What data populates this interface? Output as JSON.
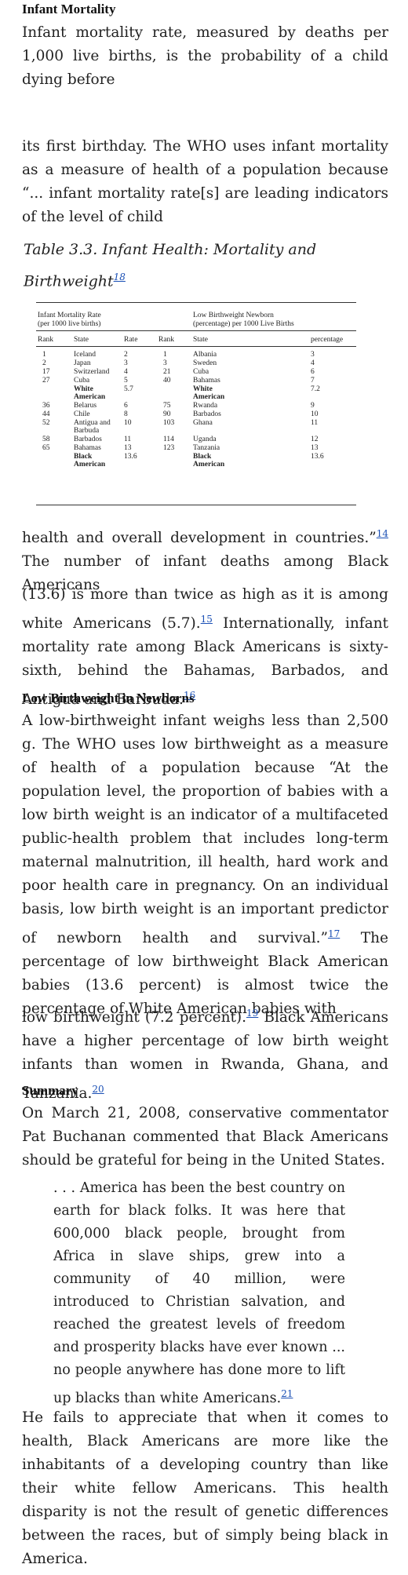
{
  "sec1": {
    "heading": "Infant Mortality",
    "p1": "Infant mortality rate, measured by deaths per 1,000 live births, is the probability of a child dying before",
    "p2": "its first birthday. The WHO uses infant mortality as a measure of health of a population because “... infant mortality rate[s] are leading indicators of the level of child",
    "p3a": "health and overall development in countries.”",
    "fn14": "14",
    "p3b": " The number of infant deaths among Black Americans",
    "p4a": "(13.6) is more than twice as high as it is among white Americans (5.7).",
    "fn15": "15",
    "p4b": " Internationally, infant mortality rate among Black Americans is sixty-sixth, behind the Bahamas, Barbados, and Antigua and Barbuda.",
    "fn16": "16"
  },
  "table": {
    "caption": "Table 3.3. Infant Health: Mortality and Birthweight",
    "caption_fn": "18",
    "group1": [
      "Infant Mortality Rate",
      "(per 1000 live births)"
    ],
    "group2": [
      "Low Birthweight Newborn",
      "(percentage) per 1000 Live Births"
    ],
    "headers": [
      "Rank",
      "State",
      "Rate",
      "Rank",
      "State",
      "percentage"
    ],
    "rows": [
      [
        "1",
        "Iceland",
        "2",
        "1",
        "Albania",
        "3"
      ],
      [
        "2",
        "Japan",
        "3",
        "3",
        "Sweden",
        "4"
      ],
      [
        "17",
        "Switzerland",
        "4",
        "21",
        "Cuba",
        "6"
      ],
      [
        "27",
        "Cuba",
        "5",
        "40",
        "Bahamas",
        "7"
      ],
      [
        "",
        "White American",
        "5.7",
        "",
        "White American",
        "7.2"
      ],
      [
        "36",
        "Belarus",
        "6",
        "75",
        "Rwanda",
        "9"
      ],
      [
        "44",
        "Chile",
        "8",
        "90",
        "Barbados",
        "10"
      ],
      [
        "52",
        "Antigua and Barbuda",
        "10",
        "103",
        "Ghana",
        "11"
      ],
      [
        "58",
        "Barbados",
        "11",
        "114",
        "Uganda",
        "12"
      ],
      [
        "65",
        "Bahamas",
        "13",
        "123",
        "Tanzania",
        "13"
      ],
      [
        "",
        "Black American",
        "13.6",
        "",
        "Black American",
        "13.6"
      ]
    ]
  },
  "sec2": {
    "heading": "Low Birthweight in Newborns",
    "p1a": "A low-birthweight infant weighs less than 2,500 g. The WHO uses low birthweight as a measure of health of a population because “At the population level, the proportion of babies with a low birth weight is an indicator of a multifaceted public-health problem that includes long-term maternal malnutrition, ill health, hard work and poor health care in pregnancy. On an individual basis, low birth weight is an important predictor of newborn health and survival.”",
    "fn17": "17",
    "p1b": " The percentage of low birthweight Black American babies (13.6 percent) is almost twice the percentage of White American babies with",
    "p2a": "low birthweight (7.2 percent).",
    "fn19": "19",
    "p2b": " Black Americans have a higher percentage of low birth weight infants than women in Rwanda, Ghana, and Tanzania.",
    "fn20": "20"
  },
  "sec3": {
    "heading": "Summary",
    "p1": "On March 21, 2008, conservative commentator Pat Buchanan commented that Black Americans should be grateful for being in the United States.",
    "quote": ". . . America has been the best country on earth for black folks. It was here that 600,000 black people, brought from Africa in slave ships, grew into a community of 40 million, were introduced to Christian salvation, and reached the greatest levels of freedom and prosperity blacks have ever known ... no people anywhere has done more to lift up blacks than white Americans.",
    "fn21": "21",
    "p2": "He fails to appreciate that when it comes to health, Black Americans are more like the inhabitants of a developing country than like their white fellow Americans. This health disparity is not the result of genetic differences between the races, but of simply being black in America."
  }
}
